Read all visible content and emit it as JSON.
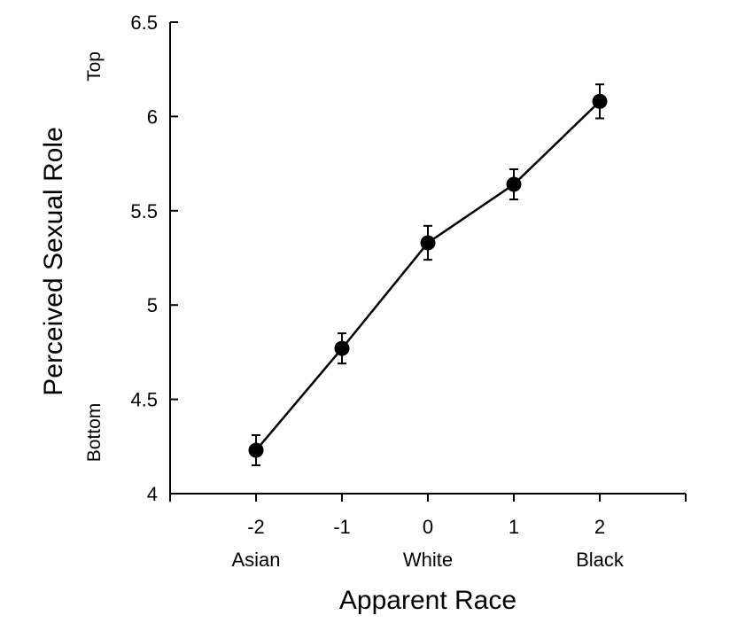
{
  "chart_data": {
    "type": "line",
    "xlabel": "Apparent Race",
    "ylabel": "Perceived Sexual Role",
    "x": [
      -2,
      -1,
      0,
      1,
      2
    ],
    "x_tick_labels": [
      "-2",
      "-1",
      "0",
      "1",
      "2"
    ],
    "x_category_labels": [
      "Asian",
      "",
      "White",
      "",
      "Black"
    ],
    "xlim": [
      -3,
      3
    ],
    "ylim": [
      4,
      6.5
    ],
    "y_ticks": [
      4,
      4.5,
      5,
      5.5,
      6,
      6.5
    ],
    "y_tick_labels": [
      "4",
      "4.5",
      "5",
      "5.5",
      "6",
      "6.5"
    ],
    "y_anchor_labels": {
      "top": "Top",
      "bottom": "Bottom"
    },
    "series": [
      {
        "values": [
          4.23,
          4.77,
          5.33,
          5.64,
          6.08
        ],
        "error": [
          0.08,
          0.08,
          0.09,
          0.08,
          0.09
        ]
      }
    ],
    "grid": false,
    "legend": "none",
    "colors": {
      "line": "#000000",
      "marker": "#000000"
    }
  }
}
